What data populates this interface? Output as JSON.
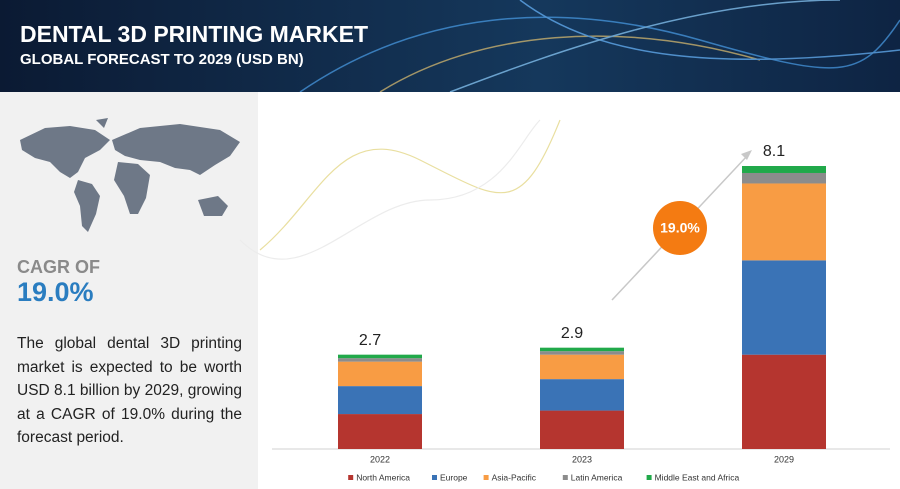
{
  "chart_data": {
    "type": "stacked_bar",
    "title": "DENTAL 3D PRINTING MARKET",
    "subtitle": "GLOBAL FORECAST TO 2029 (USD BN)",
    "cagr_heading": "CAGR OF",
    "cagr_value": "19.0%",
    "description": "The global dental 3D printing market is expected to be worth USD 8.1 billion by 2029, growing at a CAGR of 19.0% during the forecast period.",
    "categories": [
      "2022",
      "2023",
      "2029"
    ],
    "totals": [
      2.7,
      2.9,
      8.1
    ],
    "series": [
      {
        "name": "North America",
        "color": "#b5352f",
        "values": [
          1.0,
          1.1,
          2.7
        ]
      },
      {
        "name": "Europe",
        "color": "#3a73b6",
        "values": [
          0.8,
          0.9,
          2.7
        ]
      },
      {
        "name": "Asia-Pacific",
        "color": "#f89c44",
        "values": [
          0.7,
          0.7,
          2.2
        ]
      },
      {
        "name": "Latin America",
        "color": "#8c8c8c",
        "values": [
          0.1,
          0.1,
          0.3
        ]
      },
      {
        "name": "Middle East and Africa",
        "color": "#21a94a",
        "values": [
          0.1,
          0.1,
          0.2
        ]
      }
    ]
  }
}
